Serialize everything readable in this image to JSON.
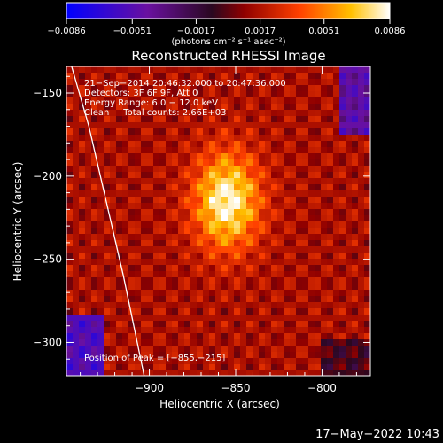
{
  "chart_data": {
    "type": "heatmap",
    "title": "Reconstructed RHESSI Image",
    "xlabel": "Heliocentric X (arcsec)",
    "ylabel": "Heliocentric Y (arcsec)",
    "xlim": [
      -948,
      -772
    ],
    "ylim": [
      -320,
      -134
    ],
    "x_ticks": [
      -900,
      -850,
      -800
    ],
    "x_tick_labels": [
      "−900",
      "−850",
      "−800"
    ],
    "y_ticks": [
      -150,
      -200,
      -250,
      -300
    ],
    "y_tick_labels": [
      "−150",
      "−200",
      "−250",
      "−300"
    ],
    "colorbar": {
      "range": [
        -0.0086,
        0.0086
      ],
      "ticks": [
        -0.0086,
        -0.0051,
        -0.0017,
        0.0017,
        0.0051,
        0.0086
      ],
      "tick_labels": [
        "−0.0086",
        "−0.0051",
        "−0.0017",
        "0.0017",
        "0.0051",
        "0.0086"
      ],
      "unit_label": "(photons cm⁻² s⁻¹ asec⁻²)"
    },
    "annotations": [
      "21−Sep−2014 20:46:32.000 to 20:47:36.000",
      "Detectors: 3F 6F 9F, Att 0",
      "Energy Range: 6.0 − 12.0 keV",
      "Clean     Total counts: 2.66E+03"
    ],
    "peak_label": "Position of Peak = [−855,−215]",
    "peak": [
      -855,
      -215
    ],
    "limb_curve": [
      [
        -945,
        -134
      ],
      [
        -935,
        -170
      ],
      [
        -925,
        -215
      ],
      [
        -915,
        -260
      ],
      [
        -903,
        -320
      ]
    ]
  },
  "footer": {
    "timestamp": "17−May−2022 10:43"
  },
  "colors": {
    "background": "#000000",
    "text": "#ffffff",
    "colormap": [
      "#0000ff",
      "#5a0a8a",
      "#3a0a2a",
      "#b00000",
      "#ff5000",
      "#ffd000",
      "#ffffff"
    ]
  }
}
